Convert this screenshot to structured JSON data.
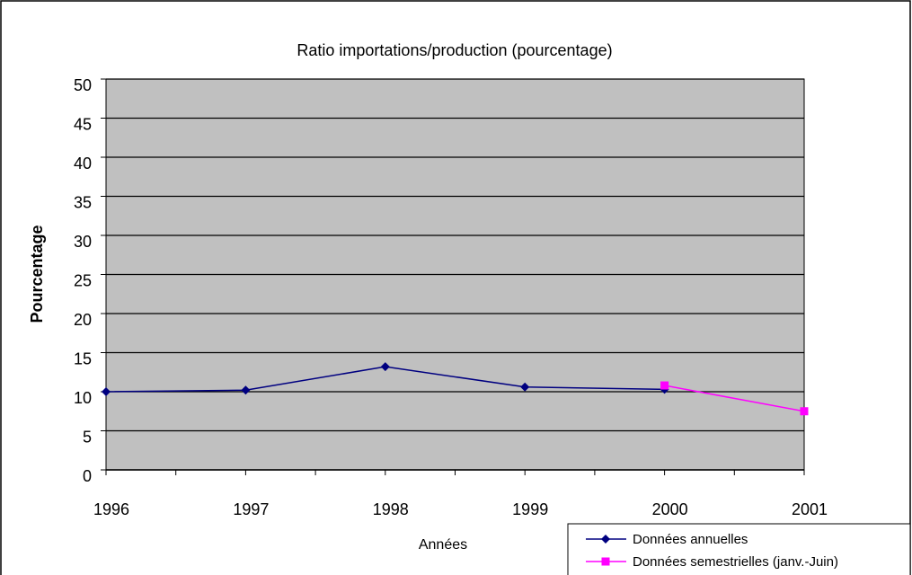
{
  "chart_data": {
    "type": "line",
    "title": "Ratio importations/production (pourcentage)",
    "x_label": "Années",
    "y_label": "Pourcentage",
    "categories": [
      "1996",
      "1997",
      "1998",
      "1999",
      "2000",
      "2001"
    ],
    "series": [
      {
        "name": "Données annuelles",
        "color": "#000080",
        "marker": "diamond",
        "values": [
          10,
          10.2,
          13.2,
          10.6,
          10.3,
          null
        ]
      },
      {
        "name": "Données semestrielles (janv.-Juin)",
        "color": "#ff00ff",
        "marker": "square",
        "values": [
          null,
          null,
          null,
          null,
          10.8,
          7.5
        ]
      }
    ],
    "ylim": [
      0,
      50
    ],
    "yticks": [
      0,
      5,
      10,
      15,
      20,
      25,
      30,
      35,
      40,
      45,
      50
    ],
    "grid": true,
    "legend": "bottom-right",
    "plot_background": "#c0c0c0"
  }
}
